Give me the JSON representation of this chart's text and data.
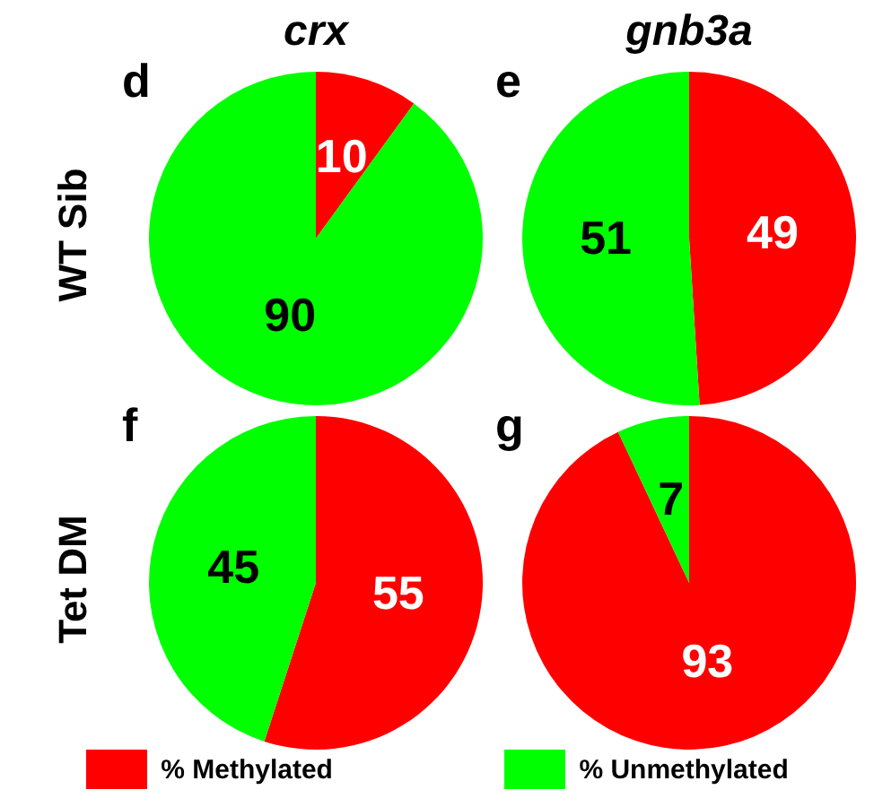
{
  "chart_data": [
    {
      "type": "pie",
      "title": "crx",
      "ylabel": "WT Sib",
      "annotations": [
        "d"
      ],
      "categories": [
        "% Methylated",
        "% Unmethylated"
      ],
      "values": [
        10,
        90
      ],
      "colors": [
        "#ff0000",
        "#00ff00"
      ],
      "data_labels": true,
      "legend": "bottom"
    },
    {
      "type": "pie",
      "title": "gnb3a",
      "annotations": [
        "e"
      ],
      "categories": [
        null,
        null
      ],
      "values": [
        49,
        51
      ],
      "colors": [
        "#ff0000",
        "#00ff00"
      ],
      "data_labels": true
    },
    {
      "type": "pie",
      "ylabel": "Tet DM",
      "annotations": [
        "f"
      ],
      "categories": [
        null,
        null
      ],
      "values": [
        55,
        45
      ],
      "colors": [
        "#ff0000",
        "#00ff00"
      ],
      "data_labels": true
    },
    {
      "type": "pie",
      "annotations": [
        "g"
      ],
      "categories": [
        null,
        null
      ],
      "values": [
        93,
        7
      ],
      "colors": [
        "#ff0000",
        "#00ff00"
      ],
      "data_labels": true
    }
  ]
}
